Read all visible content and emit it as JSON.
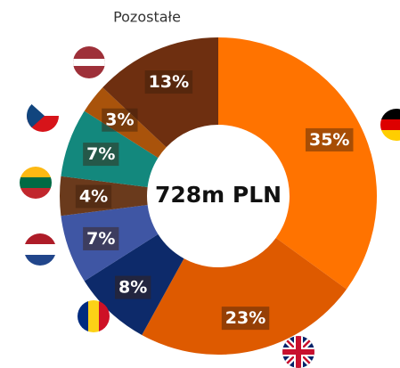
{
  "chart_data": {
    "type": "donut",
    "center_label": "728m PLN",
    "categories": [
      null,
      null,
      null,
      null,
      null,
      null,
      null,
      "Pozostałe"
    ],
    "values": [
      35,
      23,
      8,
      7,
      4,
      7,
      3,
      13
    ],
    "value_labels": [
      "35%",
      "23%",
      "8%",
      "7%",
      "4%",
      "7%",
      "3%",
      "13%"
    ],
    "colors": [
      "#ff7300",
      "#de5a00",
      "#0d2a6a",
      "#3f56a4",
      "#6a3a1c",
      "#13887d",
      "#a9530b",
      "#6e2f10"
    ]
  }
}
